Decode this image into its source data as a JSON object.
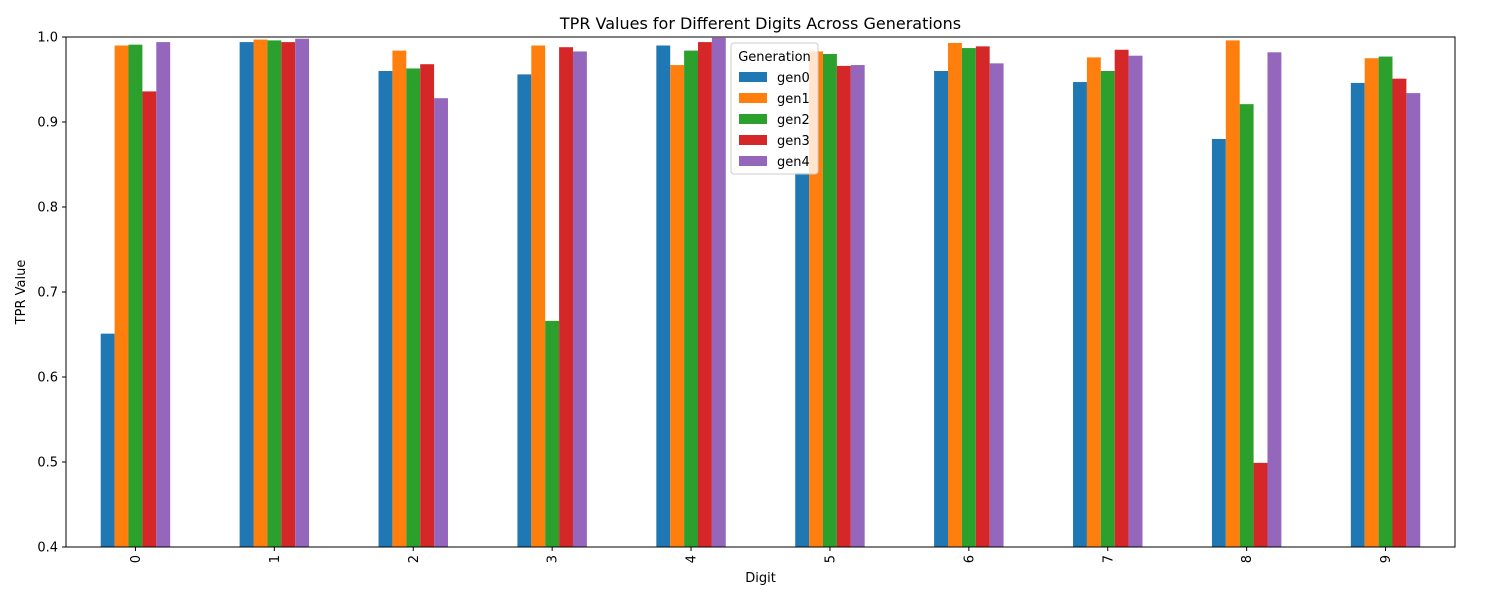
{
  "chart_data": {
    "type": "bar",
    "title": "TPR Values for Different Digits Across Generations",
    "xlabel": "Digit",
    "ylabel": "TPR Value",
    "ylim": [
      0.4,
      1.0
    ],
    "yticks": [
      "0.4",
      "0.5",
      "0.6",
      "0.7",
      "0.8",
      "0.9",
      "1.0"
    ],
    "categories": [
      "0",
      "1",
      "2",
      "3",
      "4",
      "5",
      "6",
      "7",
      "8",
      "9"
    ],
    "legend_title": "Generation",
    "legend_position": "top-center",
    "grid": false,
    "series": [
      {
        "name": "gen0",
        "color": "#1f77b4",
        "values": [
          0.651,
          0.994,
          0.96,
          0.956,
          0.99,
          0.84,
          0.96,
          0.947,
          0.88,
          0.946
        ]
      },
      {
        "name": "gen1",
        "color": "#ff7f0e",
        "values": [
          0.99,
          0.997,
          0.984,
          0.99,
          0.967,
          0.983,
          0.993,
          0.976,
          0.996,
          0.975
        ]
      },
      {
        "name": "gen2",
        "color": "#2ca02c",
        "values": [
          0.991,
          0.996,
          0.963,
          0.666,
          0.984,
          0.98,
          0.987,
          0.96,
          0.921,
          0.977
        ]
      },
      {
        "name": "gen3",
        "color": "#d62728",
        "values": [
          0.936,
          0.994,
          0.968,
          0.988,
          0.994,
          0.966,
          0.989,
          0.985,
          0.499,
          0.951
        ]
      },
      {
        "name": "gen4",
        "color": "#9467bd",
        "values": [
          0.994,
          0.998,
          0.928,
          0.983,
          0.999,
          0.967,
          0.969,
          0.978,
          0.982,
          0.934
        ]
      }
    ]
  }
}
